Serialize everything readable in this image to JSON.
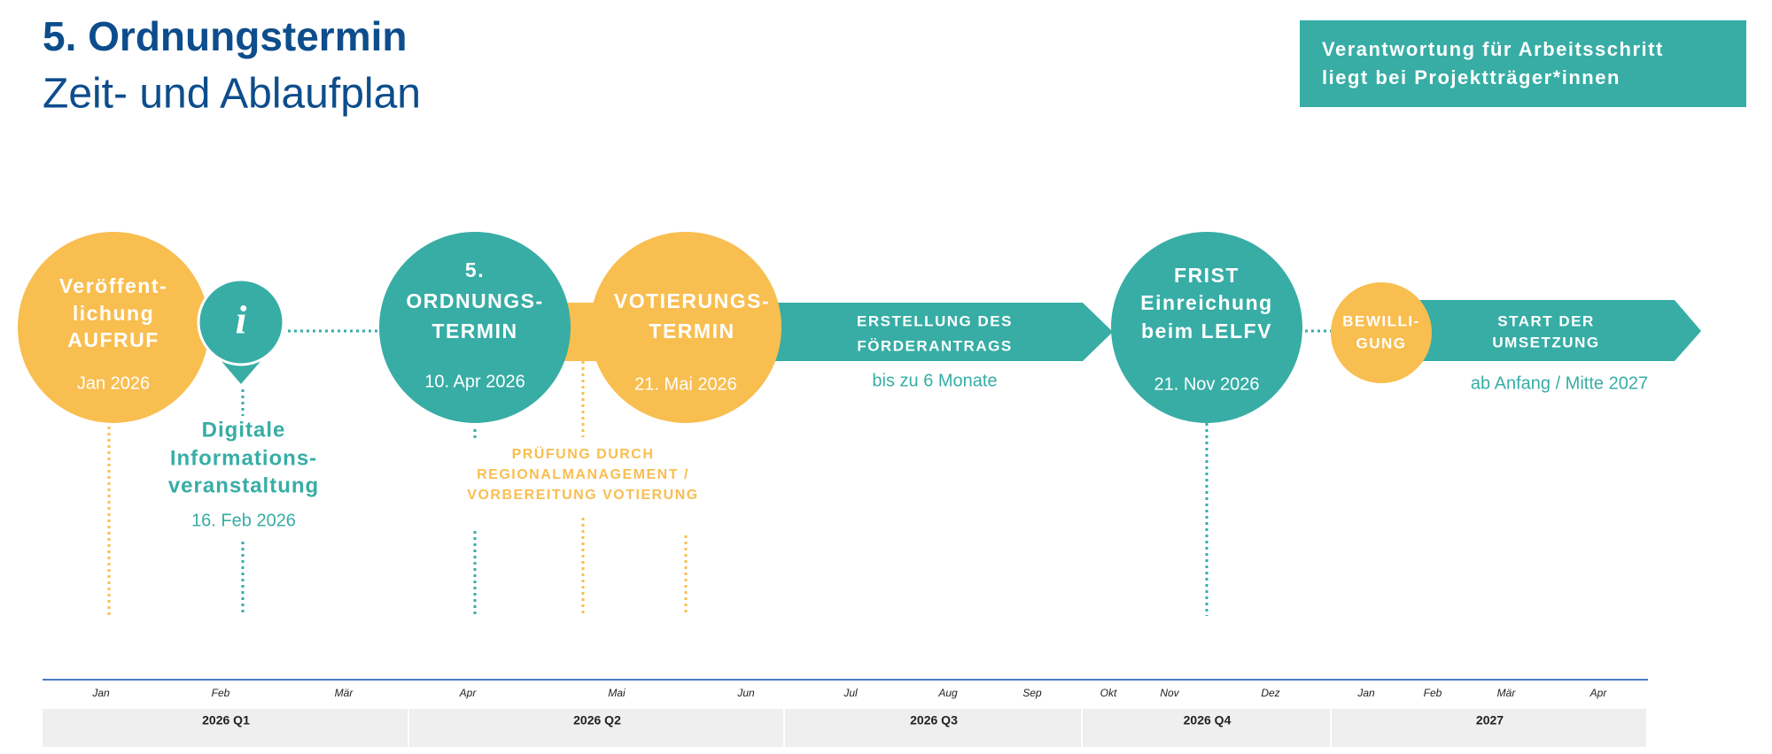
{
  "header": {
    "title": "5. Ordnungstermin",
    "subtitle": "Zeit- und Ablaufplan",
    "legend": [
      "Verantwortung für Arbeitsschritt",
      "liegt bei Projektträger*innen"
    ]
  },
  "nodes": [
    {
      "label": [
        "Veröffent-",
        "lichung",
        "AUFRUF"
      ],
      "date": "Jan 2026"
    },
    {
      "icon": "i",
      "label": [
        "Digitale",
        "Informations-",
        "veranstaltung"
      ],
      "date": "16. Feb 2026"
    },
    {
      "label": [
        "5.",
        "ORDNUNGS-",
        "TERMIN"
      ],
      "date": "10. Apr 2026"
    },
    {
      "label": [
        "VOTIERUNGS-",
        "TERMIN"
      ],
      "date": "21. Mai 2026"
    },
    {
      "label": [
        "ERSTELLUNG DES",
        "FÖRDERANTRAGS"
      ],
      "date": "bis zu 6 Monate"
    },
    {
      "label": [
        "FRIST",
        "Einreichung",
        "beim LELFV"
      ],
      "date": "21. Nov 2026"
    },
    {
      "label": [
        "BEWILLI-",
        "GUNG"
      ]
    },
    {
      "label": [
        "START DER",
        "UMSETZUNG"
      ],
      "date": "ab Anfang / Mitte 2027"
    }
  ],
  "note": [
    "PRÜFUNG DURCH",
    "REGIONALMANAGEMENT /",
    "VORBEREITUNG VOTIERUNG"
  ],
  "timeline": {
    "months": [
      "Jan",
      "Feb",
      "Mär",
      "Apr",
      "Mai",
      "Jun",
      "Jul",
      "Aug",
      "Sep",
      "Okt",
      "Nov",
      "Dez",
      "Jan",
      "Feb",
      "Mär",
      "Apr"
    ],
    "quarters": [
      "2026 Q1",
      "2026 Q2",
      "2026 Q3",
      "2026 Q4",
      "2027"
    ]
  }
}
